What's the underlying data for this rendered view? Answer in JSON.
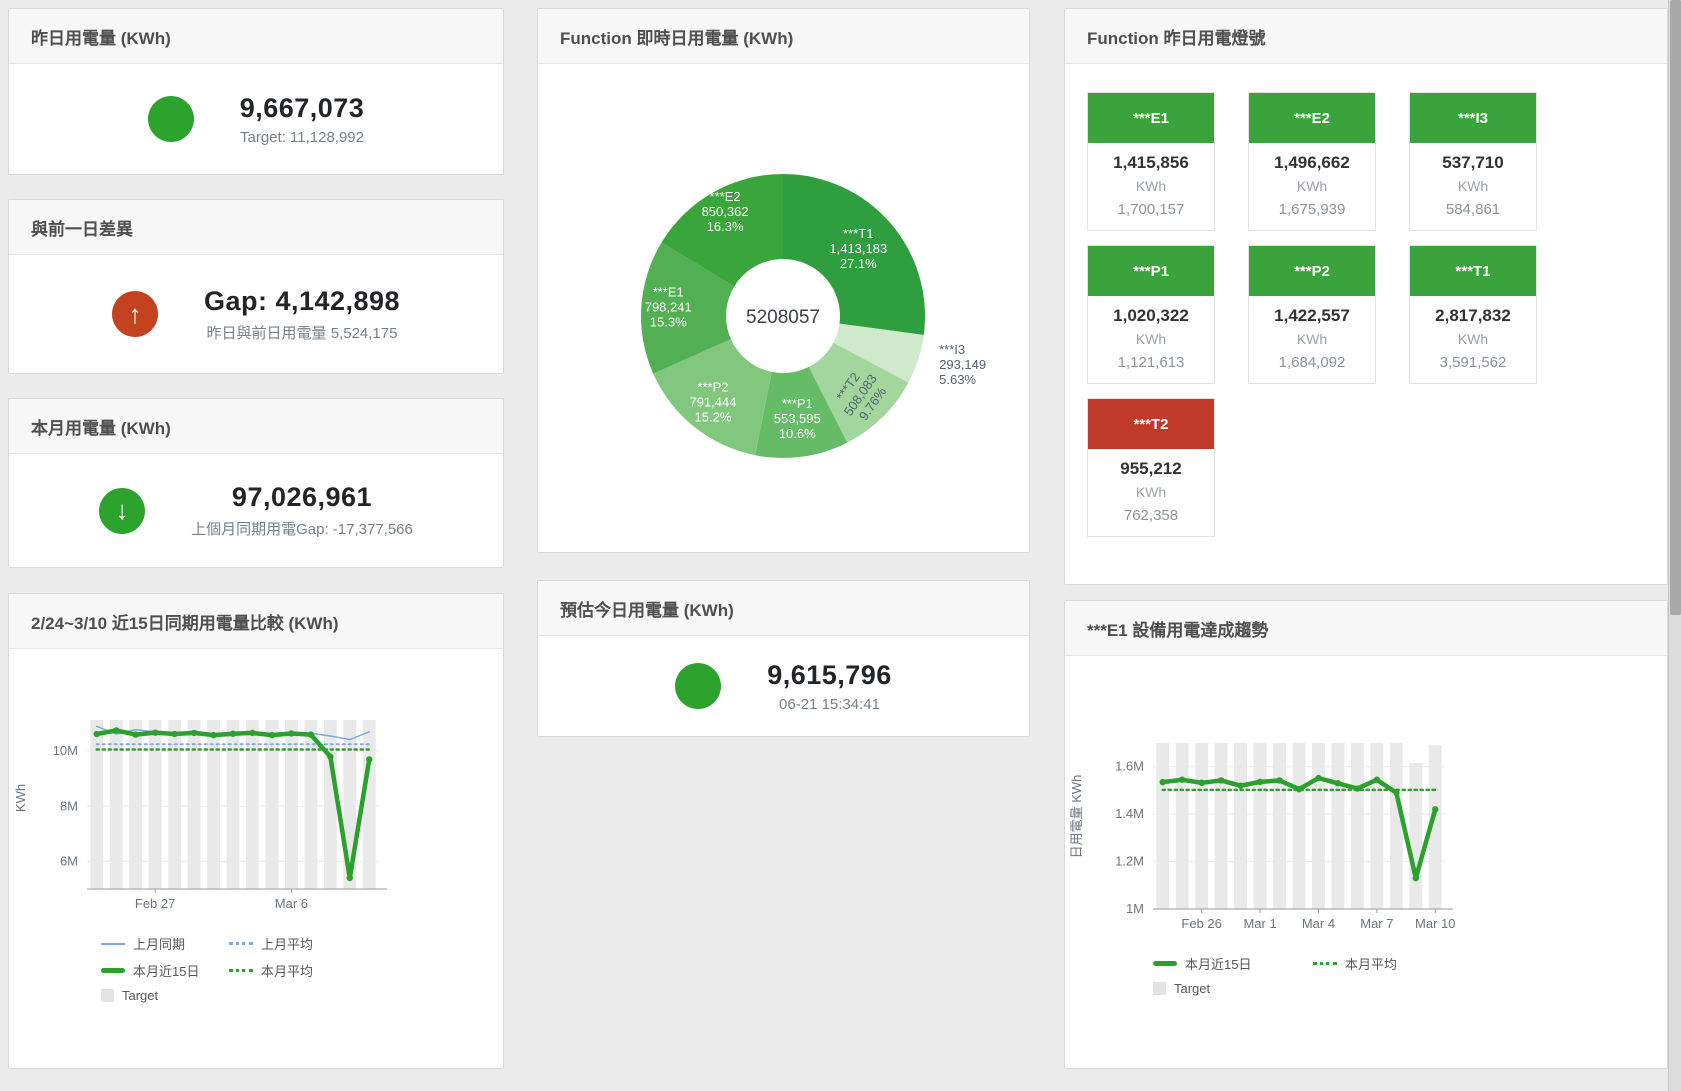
{
  "colors": {
    "green": "#2ca32c",
    "red": "#c2411f",
    "green_tile": "#3ba33b",
    "red_tile": "#bf3a2a",
    "page_bg": "#ebebeb",
    "blue_line": "#7da9dc",
    "green_line": "#2aa12a",
    "bar": "#e9e9e9"
  },
  "icons": {
    "up_arrow": "↑",
    "down_arrow": "↓"
  },
  "panels": {
    "yesterday": {
      "title": "昨日用電量 (KWh)",
      "value": "9,667,073",
      "subtitle": "Target: 11,128,992"
    },
    "day_gap": {
      "title": "與前一日差異",
      "value": "Gap: 4,142,898",
      "subtitle": "昨日與前日用電量 5,524,175"
    },
    "month": {
      "title": "本月用電量 (KWh)",
      "value": "97,026,961",
      "subtitle": "上個月同期用電Gap: -17,377,566"
    },
    "estimate": {
      "title": "預估今日用電量 (KWh)",
      "value": "9,615,796",
      "subtitle": "06-21 15:34:41"
    },
    "compare": {
      "title": "2/24~3/10 近15日同期用電量比較 (KWh)"
    },
    "realtime": {
      "title": "Function 即時日用電量 (KWh)"
    },
    "e1_trend": {
      "title": "***E1 設備用電達成趨勢"
    },
    "lights": {
      "title": "Function 昨日用電燈號",
      "tiles": [
        {
          "label": "***E1",
          "value": "1,415,856",
          "unit": "KWh",
          "target": "1,700,157",
          "status": "green"
        },
        {
          "label": "***E2",
          "value": "1,496,662",
          "unit": "KWh",
          "target": "1,675,939",
          "status": "green"
        },
        {
          "label": "***I3",
          "value": "537,710",
          "unit": "KWh",
          "target": "584,861",
          "status": "green"
        },
        {
          "label": "***P1",
          "value": "1,020,322",
          "unit": "KWh",
          "target": "1,121,613",
          "status": "green"
        },
        {
          "label": "***P2",
          "value": "1,422,557",
          "unit": "KWh",
          "target": "1,684,092",
          "status": "green"
        },
        {
          "label": "***T1",
          "value": "2,817,832",
          "unit": "KWh",
          "target": "3,591,562",
          "status": "green"
        },
        {
          "label": "***T2",
          "value": "955,212",
          "unit": "KWh",
          "target": "762,358",
          "status": "red"
        }
      ]
    }
  },
  "chart_data": [
    {
      "id": "realtime-donut",
      "type": "pie",
      "title": "Function 即時日用電量 (KWh)",
      "center_label": "5208057",
      "slices": [
        {
          "name": "***T1",
          "value": 1413183,
          "value_label": "1,413,183",
          "pct": "27.1%",
          "color": "#2f9e3f",
          "text": "#ffffff",
          "label_r": 100
        },
        {
          "name": "***I3",
          "value": 293149,
          "value_label": "293,149",
          "pct": "5.63%",
          "color": "#cfe9cb",
          "text": "#55616e",
          "placement": "outside"
        },
        {
          "name": "***T2",
          "value": 508083,
          "value_label": "508,083",
          "pct": "9.76%",
          "color": "#a3d69d",
          "text": "#55616e",
          "rotate": -55
        },
        {
          "name": "***P1",
          "value": 553595,
          "value_label": "553,595",
          "pct": "10.6%",
          "color": "#66bb66",
          "text": "#ffffff",
          "label_r": 105
        },
        {
          "name": "***P2",
          "value": 791444,
          "value_label": "791,444",
          "pct": "15.2%",
          "color": "#82c77e",
          "text": "#ffffff"
        },
        {
          "name": "***E1",
          "value": 798241,
          "value_label": "798,241",
          "pct": "15.3%",
          "color": "#53af53",
          "text": "#ffffff",
          "label_r": 115
        },
        {
          "name": "***E2",
          "value": 850362,
          "value_label": "850,362",
          "pct": "16.3%",
          "color": "#3aa53a",
          "text": "#ffffff",
          "label_r": 118
        }
      ]
    },
    {
      "id": "compare-15d",
      "type": "bar+line",
      "title": "2/24~3/10 近15日同期用電量比較 (KWh)",
      "ylabel": "KWh",
      "x": [
        "2/24",
        "2/25",
        "2/26",
        "2/27",
        "2/28",
        "3/1",
        "3/2",
        "3/3",
        "3/4",
        "3/5",
        "3/6",
        "3/7",
        "3/8",
        "3/9",
        "3/10"
      ],
      "y_min": 5000000,
      "y_max": 11600000,
      "y_ticks": [
        {
          "v": 6000000,
          "label": "6M"
        },
        {
          "v": 8000000,
          "label": "8M"
        },
        {
          "v": 10000000,
          "label": "10M"
        }
      ],
      "x_ticks": [
        {
          "i": 3,
          "label": "Feb 27"
        },
        {
          "i": 10,
          "label": "Mar 6"
        }
      ],
      "bars": {
        "name": "Target",
        "color": "#e9e9e9",
        "values": [
          11128992,
          11128992,
          11128992,
          11128992,
          11128992,
          11128992,
          11128992,
          11128992,
          11128992,
          11128992,
          11128992,
          11128992,
          11128992,
          11128992,
          11128992
        ]
      },
      "lines": [
        {
          "name": "上月同期",
          "color": "#7da9dc",
          "w": 1.5,
          "values": [
            10900000,
            10620000,
            10780000,
            10700000,
            10650000,
            10720000,
            10620000,
            10680000,
            10700000,
            10620000,
            10680000,
            10650000,
            10550000,
            10420000,
            10700000
          ]
        },
        {
          "name": "上月平均",
          "color": "#7da9dc",
          "w": 2,
          "dash": "2 4",
          "values": [
            10250000,
            10250000,
            10250000,
            10250000,
            10250000,
            10250000,
            10250000,
            10250000,
            10250000,
            10250000,
            10250000,
            10250000,
            10250000,
            10250000,
            10250000
          ]
        },
        {
          "name": "本月平均",
          "color": "#2aa12a",
          "w": 2.5,
          "dash": "2 4",
          "values": [
            10060000,
            10060000,
            10060000,
            10060000,
            10060000,
            10060000,
            10060000,
            10060000,
            10060000,
            10060000,
            10060000,
            10060000,
            10060000,
            10060000,
            10060000
          ]
        },
        {
          "name": "本月近15日",
          "color": "#2aa12a",
          "w": 4.5,
          "points": true,
          "values": [
            10620000,
            10750000,
            10600000,
            10670000,
            10620000,
            10660000,
            10580000,
            10630000,
            10660000,
            10580000,
            10640000,
            10600000,
            9800000,
            5400000,
            9700000
          ]
        }
      ],
      "legend": [
        {
          "label": "上月同期",
          "type": "line",
          "color": "#7da9dc"
        },
        {
          "label": "上月平均",
          "type": "dash",
          "color": "#7da9dc"
        },
        {
          "label": "本月近15日",
          "type": "thick",
          "color": "#2aa12a"
        },
        {
          "label": "本月平均",
          "type": "dash",
          "color": "#2aa12a"
        },
        {
          "label": "Target",
          "type": "box",
          "color": "#e3e3e3"
        }
      ]
    },
    {
      "id": "e1-trend",
      "type": "bar+line",
      "title": "***E1 設備用電達成趨勢",
      "ylabel": "日用電量 KWh",
      "x": [
        "2/24",
        "2/25",
        "2/26",
        "2/27",
        "2/28",
        "3/1",
        "3/2",
        "3/3",
        "3/4",
        "3/5",
        "3/6",
        "3/7",
        "3/8",
        "3/9",
        "3/10"
      ],
      "y_min": 1000000,
      "y_max": 1780000,
      "y_ticks": [
        {
          "v": 1000000,
          "label": "1M"
        },
        {
          "v": 1200000,
          "label": "1.2M"
        },
        {
          "v": 1400000,
          "label": "1.4M"
        },
        {
          "v": 1600000,
          "label": "1.6M"
        }
      ],
      "x_ticks": [
        {
          "i": 2,
          "label": "Feb 26"
        },
        {
          "i": 5,
          "label": "Mar 1"
        },
        {
          "i": 8,
          "label": "Mar 4"
        },
        {
          "i": 11,
          "label": "Mar 7"
        },
        {
          "i": 14,
          "label": "Mar 10"
        }
      ],
      "bars": {
        "name": "Target",
        "color": "#e9e9e9",
        "values": [
          1700157,
          1700157,
          1700157,
          1700157,
          1700157,
          1700157,
          1700157,
          1700157,
          1700157,
          1700157,
          1700157,
          1700157,
          1700157,
          1615000,
          1690000
        ]
      },
      "lines": [
        {
          "name": "本月平均",
          "color": "#2aa12a",
          "w": 2.5,
          "dash": "2 4",
          "values": [
            1502000,
            1502000,
            1502000,
            1502000,
            1502000,
            1502000,
            1502000,
            1502000,
            1502000,
            1502000,
            1502000,
            1502000,
            1502000,
            1502000,
            1502000
          ]
        },
        {
          "name": "本月近15日",
          "color": "#2aa12a",
          "w": 4.5,
          "points": true,
          "values": [
            1535000,
            1545000,
            1532000,
            1542000,
            1520000,
            1536000,
            1542000,
            1505000,
            1552000,
            1530000,
            1508000,
            1545000,
            1490000,
            1130000,
            1420000
          ]
        }
      ],
      "legend": [
        {
          "label": "本月近15日",
          "type": "thick",
          "color": "#2aa12a"
        },
        {
          "label": "本月平均",
          "type": "dash",
          "color": "#2aa12a"
        },
        {
          "label": "Target",
          "type": "box",
          "color": "#e3e3e3"
        }
      ]
    }
  ]
}
